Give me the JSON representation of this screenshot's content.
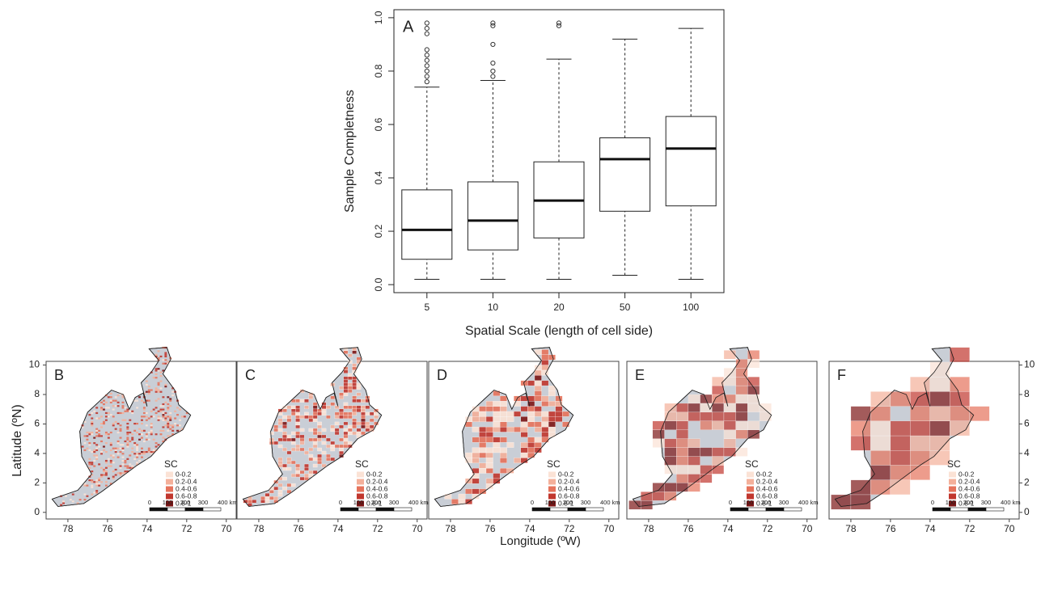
{
  "chart_data": [
    {
      "type": "box",
      "panel_label": "A",
      "ylabel": "Sample Completness",
      "xlabel": "Spatial Scale (length of cell side)",
      "categories": [
        "5",
        "10",
        "20",
        "50",
        "100"
      ],
      "boxes": [
        {
          "low": 0.02,
          "q1": 0.095,
          "median": 0.205,
          "q3": 0.355,
          "high": 0.74,
          "outliers": [
            0.76,
            0.78,
            0.8,
            0.82,
            0.84,
            0.86,
            0.88,
            0.94,
            0.96,
            0.98
          ]
        },
        {
          "low": 0.02,
          "q1": 0.13,
          "median": 0.24,
          "q3": 0.385,
          "high": 0.765,
          "outliers": [
            0.78,
            0.8,
            0.83,
            0.9,
            0.97,
            0.98
          ]
        },
        {
          "low": 0.02,
          "q1": 0.175,
          "median": 0.315,
          "q3": 0.46,
          "high": 0.845,
          "outliers": [
            0.97,
            0.98
          ]
        },
        {
          "low": 0.035,
          "q1": 0.275,
          "median": 0.47,
          "q3": 0.55,
          "high": 0.92,
          "outliers": []
        },
        {
          "low": 0.02,
          "q1": 0.295,
          "median": 0.51,
          "q3": 0.63,
          "high": 0.96,
          "outliers": []
        }
      ],
      "ylim": [
        -0.03,
        1.03
      ],
      "yticks": [
        {
          "value": 0,
          "label": "0.0"
        },
        0.2,
        0.4,
        0.6,
        0.8,
        {
          "value": 1,
          "label": "1.0"
        }
      ]
    },
    {
      "type": "map",
      "panels": [
        "B",
        "C",
        "D",
        "E",
        "F"
      ],
      "xlabel": "Longitude (ºW)",
      "ylabel": "Latitude (ºN)",
      "xlim": [
        79.1,
        69.5
      ],
      "ylim": [
        -0.45,
        10.25
      ],
      "xticks": [
        78,
        76,
        74,
        72,
        70
      ],
      "yticks": [
        0,
        2,
        4,
        6,
        8,
        10
      ],
      "legend_title": "SC",
      "legend": [
        {
          "label": "0-0.2",
          "color": "#fbe2d5"
        },
        {
          "label": "0.2-0.4",
          "color": "#f4b09a"
        },
        {
          "label": "0.4-0.6",
          "color": "#e6735c"
        },
        {
          "label": "0.6-0.8",
          "color": "#c1372e"
        },
        {
          "label": "0.8-1",
          "color": "#7d1616"
        }
      ],
      "scale_labels": [
        "0",
        "100",
        "200",
        "300",
        "400 km"
      ]
    }
  ]
}
